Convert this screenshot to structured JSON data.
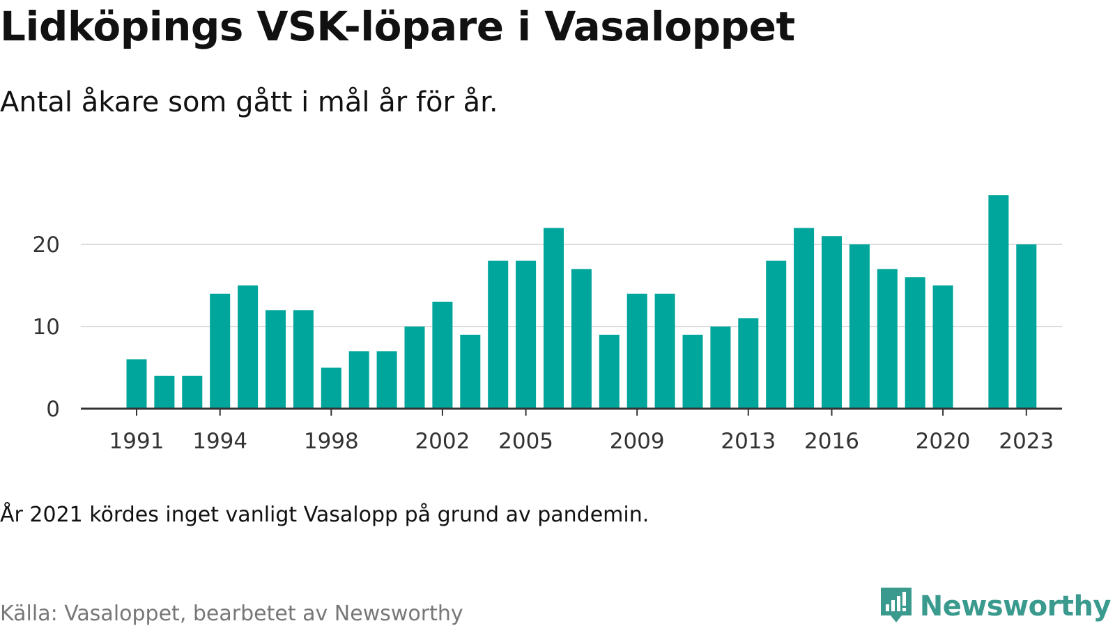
{
  "title": "Lidköpings VSK-löpare i Vasaloppet",
  "subtitle": "Antal åkare som gått i mål år för år.",
  "note": "År 2021 kördes inget vanligt Vasalopp på grund av pandemin.",
  "source": "Källa: Vasaloppet, bearbetet av Newsworthy",
  "brand": {
    "name": "Newsworthy",
    "icon": "newsworthy-logo-icon"
  },
  "colors": {
    "bar": "#00a59b",
    "grid": "#dddddd",
    "axis": "#333333",
    "brand": "#3a9a8e"
  },
  "chart_data": {
    "type": "bar",
    "categories": [
      1991,
      1992,
      1993,
      1994,
      1995,
      1996,
      1997,
      1998,
      1999,
      2000,
      2001,
      2002,
      2003,
      2004,
      2005,
      2006,
      2007,
      2008,
      2009,
      2010,
      2011,
      2012,
      2013,
      2014,
      2015,
      2016,
      2017,
      2018,
      2019,
      2020,
      2021,
      2022,
      2023
    ],
    "values": [
      6,
      4,
      4,
      14,
      15,
      12,
      12,
      5,
      7,
      7,
      10,
      13,
      9,
      18,
      18,
      22,
      17,
      9,
      14,
      14,
      9,
      10,
      11,
      18,
      22,
      21,
      20,
      17,
      16,
      15,
      null,
      26,
      20
    ],
    "xticks": [
      "1991",
      "1994",
      "1998",
      "2002",
      "2005",
      "2009",
      "2013",
      "2016",
      "2020",
      "2023"
    ],
    "yticks": [
      "0",
      "10",
      "20"
    ],
    "ylim": [
      0,
      28
    ],
    "grid": true,
    "xlabel": "",
    "ylabel": ""
  }
}
